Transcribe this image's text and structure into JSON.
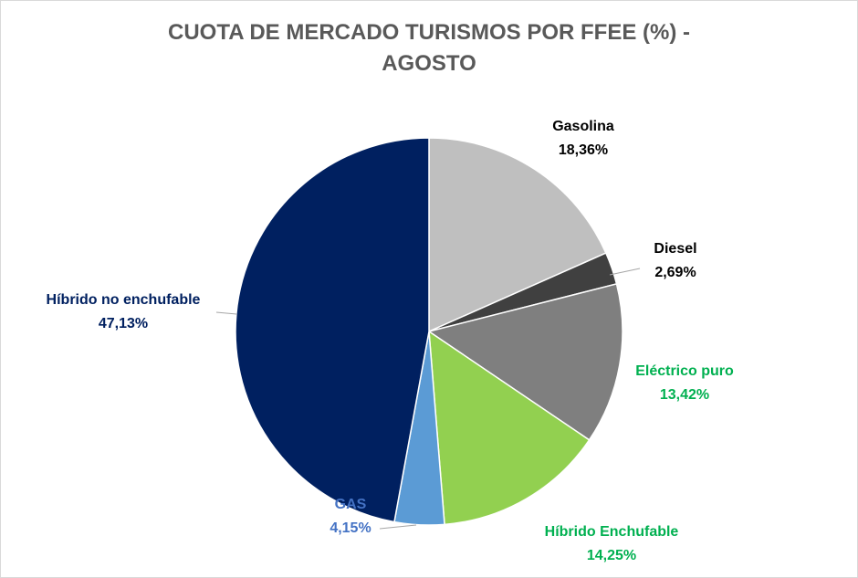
{
  "chart_data": {
    "type": "pie",
    "title_line1": "CUOTA DE MERCADO TURISMOS POR FFEE (%)  -",
    "title_line2": "AGOSTO",
    "slices": [
      {
        "name": "Gasolina",
        "value": 18.36,
        "label": "18,36%",
        "color": "#bfbfbf",
        "label_color": "#000000"
      },
      {
        "name": "Diesel",
        "value": 2.69,
        "label": "2,69%",
        "color": "#404040",
        "label_color": "#000000"
      },
      {
        "name": "Eléctrico puro",
        "value": 13.42,
        "label": "13,42%",
        "color": "#7f7f7f",
        "label_color": "#00b050"
      },
      {
        "name": "Híbrido Enchufable",
        "value": 14.25,
        "label": "14,25%",
        "color": "#92d050",
        "label_color": "#00b050"
      },
      {
        "name": "GAS",
        "value": 4.15,
        "label": "4,15%",
        "color": "#5b9bd5",
        "label_color": "#4472c4"
      },
      {
        "name": "Híbrido no enchufable",
        "value": 47.13,
        "label": "47,13%",
        "color": "#002060",
        "label_color": "#002060"
      }
    ],
    "start_angle_deg": 0,
    "direction": "clockwise"
  }
}
